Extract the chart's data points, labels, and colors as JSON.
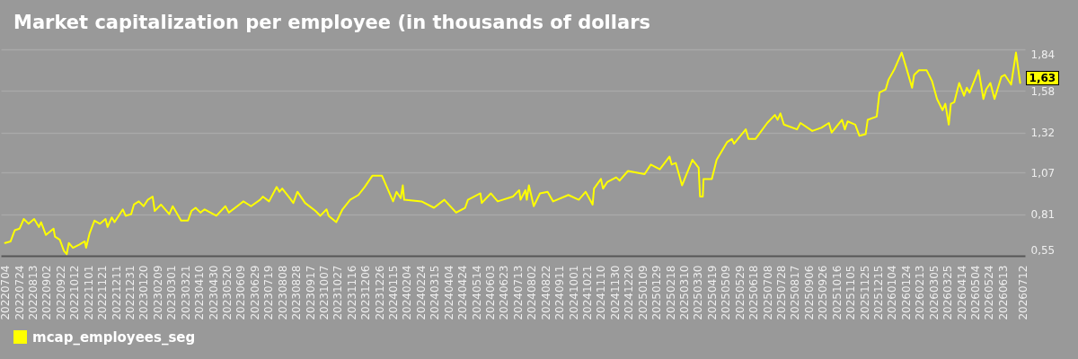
{
  "chart_data": {
    "type": "line",
    "title": "Market capitalization per employee (in thousands of dollars",
    "x": [
      "2022-07-04",
      "2022-07-12",
      "2022-07-18",
      "2022-07-25",
      "2022-07-31",
      "2022-08-07",
      "2022-08-15",
      "2022-08-22",
      "2022-08-25",
      "2022-09-01",
      "2022-09-12",
      "2022-09-14",
      "2022-09-21",
      "2022-09-27",
      "2022-10-01",
      "2022-10-04",
      "2022-10-10",
      "2022-10-19",
      "2022-10-27",
      "2022-10-29",
      "2022-11-03",
      "2022-11-10",
      "2022-11-18",
      "2022-11-26",
      "2022-11-29",
      "2022-12-05",
      "2022-12-09",
      "2022-12-15",
      "2022-12-21",
      "2022-12-25",
      "2023-01-02",
      "2023-01-06",
      "2023-01-13",
      "2023-01-20",
      "2023-01-26",
      "2023-02-02",
      "2023-02-05",
      "2023-02-14",
      "2023-02-26",
      "2023-03-03",
      "2023-03-15",
      "2023-03-25",
      "2023-03-30",
      "2023-04-05",
      "2023-04-12",
      "2023-04-18",
      "2023-05-05",
      "2023-05-18",
      "2023-05-23",
      "2023-06-07",
      "2023-06-13",
      "2023-06-24",
      "2023-07-07",
      "2023-07-11",
      "2023-07-20",
      "2023-07-31",
      "2023-08-04",
      "2023-08-08",
      "2023-08-19",
      "2023-08-24",
      "2023-08-30",
      "2023-09-10",
      "2023-09-25",
      "2023-10-02",
      "2023-10-11",
      "2023-10-14",
      "2023-10-25",
      "2023-11-03",
      "2023-11-14",
      "2023-11-26",
      "2023-12-05",
      "2023-12-16",
      "2023-12-30",
      "2024-01-07",
      "2024-01-15",
      "2024-01-20",
      "2024-01-26",
      "2024-01-29",
      "2024-01-31",
      "2024-02-25",
      "2024-03-14",
      "2024-03-29",
      "2024-04-15",
      "2024-04-28",
      "2024-05-02",
      "2024-05-20",
      "2024-05-22",
      "2024-06-04",
      "2024-06-14",
      "2024-07-06",
      "2024-07-15",
      "2024-07-17",
      "2024-07-24",
      "2024-07-26",
      "2024-07-29",
      "2024-08-05",
      "2024-08-14",
      "2024-08-25",
      "2024-09-02",
      "2024-09-24",
      "2024-10-09",
      "2024-10-19",
      "2024-10-29",
      "2024-10-31",
      "2024-11-10",
      "2024-11-13",
      "2024-11-19",
      "2024-12-02",
      "2024-12-07",
      "2024-12-19",
      "2024-12-31",
      "2025-01-12",
      "2025-01-21",
      "2025-02-03",
      "2025-02-17",
      "2025-02-20",
      "2025-02-26",
      "2025-03-07",
      "2025-03-22",
      "2025-03-31",
      "2025-04-02",
      "2025-04-06",
      "2025-04-07",
      "2025-04-19",
      "2025-04-26",
      "2025-05-11",
      "2025-05-18",
      "2025-05-21",
      "2025-06-07",
      "2025-06-11",
      "2025-06-21",
      "2025-07-08",
      "2025-07-19",
      "2025-07-23",
      "2025-07-27",
      "2025-08-01",
      "2025-08-20",
      "2025-08-25",
      "2025-09-11",
      "2025-09-24",
      "2025-10-05",
      "2025-10-09",
      "2025-10-24",
      "2025-10-28",
      "2025-11-01",
      "2025-11-12",
      "2025-11-18",
      "2025-11-27",
      "2025-11-30",
      "2025-12-13",
      "2025-12-17",
      "2025-12-26",
      "2025-12-30",
      "2026-01-08",
      "2026-01-18",
      "2026-01-25",
      "2026-02-02",
      "2026-02-05",
      "2026-02-12",
      "2026-02-23",
      "2026-03-03",
      "2026-03-10",
      "2026-03-18",
      "2026-03-22",
      "2026-03-27",
      "2026-03-30",
      "2026-04-04",
      "2026-04-11",
      "2026-04-18",
      "2026-04-22",
      "2026-04-26",
      "2026-05-09",
      "2026-05-16",
      "2026-05-20",
      "2026-05-26",
      "2026-06-01",
      "2026-06-11",
      "2026-06-16",
      "2026-06-25",
      "2026-07-02",
      "2026-07-08"
    ],
    "series": [
      {
        "name": "mcap_employees_seg",
        "color": "#ffff00",
        "values": [
          0.63,
          0.64,
          0.71,
          0.72,
          0.78,
          0.75,
          0.78,
          0.73,
          0.76,
          0.68,
          0.72,
          0.67,
          0.65,
          0.58,
          0.56,
          0.63,
          0.6,
          0.62,
          0.64,
          0.6,
          0.69,
          0.77,
          0.75,
          0.78,
          0.73,
          0.79,
          0.76,
          0.8,
          0.84,
          0.8,
          0.81,
          0.87,
          0.89,
          0.86,
          0.9,
          0.92,
          0.83,
          0.87,
          0.81,
          0.86,
          0.77,
          0.77,
          0.83,
          0.85,
          0.82,
          0.84,
          0.8,
          0.86,
          0.82,
          0.87,
          0.89,
          0.86,
          0.9,
          0.92,
          0.89,
          0.98,
          0.95,
          0.97,
          0.91,
          0.88,
          0.95,
          0.88,
          0.83,
          0.8,
          0.84,
          0.8,
          0.76,
          0.84,
          0.9,
          0.93,
          0.98,
          1.05,
          1.05,
          0.97,
          0.89,
          0.95,
          0.91,
          0.99,
          0.9,
          0.89,
          0.85,
          0.9,
          0.82,
          0.85,
          0.9,
          0.94,
          0.88,
          0.94,
          0.89,
          0.92,
          0.96,
          0.9,
          0.96,
          0.9,
          0.99,
          0.86,
          0.94,
          0.95,
          0.89,
          0.93,
          0.9,
          0.95,
          0.87,
          0.97,
          1.03,
          0.97,
          1.01,
          1.04,
          1.02,
          1.08,
          1.07,
          1.06,
          1.12,
          1.09,
          1.17,
          1.12,
          1.13,
          0.99,
          1.15,
          1.1,
          0.92,
          0.92,
          1.03,
          1.03,
          1.15,
          1.26,
          1.28,
          1.25,
          1.34,
          1.28,
          1.28,
          1.38,
          1.43,
          1.4,
          1.44,
          1.37,
          1.34,
          1.38,
          1.33,
          1.35,
          1.38,
          1.32,
          1.4,
          1.34,
          1.39,
          1.37,
          1.3,
          1.31,
          1.4,
          1.42,
          1.57,
          1.59,
          1.65,
          1.72,
          1.82,
          1.72,
          1.6,
          1.68,
          1.71,
          1.71,
          1.64,
          1.53,
          1.46,
          1.5,
          1.37,
          1.5,
          1.51,
          1.63,
          1.55,
          1.6,
          1.57,
          1.71,
          1.53,
          1.59,
          1.63,
          1.53,
          1.67,
          1.68,
          1.62,
          1.82,
          1.63
        ]
      }
    ],
    "xlim": [
      "2022-06-28",
      "2026-07-15"
    ],
    "xticks": [
      {
        "value": "2022-07-04",
        "label": "20220704"
      },
      {
        "value": "2022-07-24",
        "label": "20220724"
      },
      {
        "value": "2022-08-13",
        "label": "20220813"
      },
      {
        "value": "2022-09-02",
        "label": "20220902"
      },
      {
        "value": "2022-09-22",
        "label": "20220922"
      },
      {
        "value": "2022-10-12",
        "label": "20221012"
      },
      {
        "value": "2022-11-01",
        "label": "20221101"
      },
      {
        "value": "2022-11-21",
        "label": "20221121"
      },
      {
        "value": "2022-12-11",
        "label": "20221211"
      },
      {
        "value": "2022-12-31",
        "label": "20221231"
      },
      {
        "value": "2023-01-20",
        "label": "20230120"
      },
      {
        "value": "2023-02-09",
        "label": "20230209"
      },
      {
        "value": "2023-03-01",
        "label": "20230301"
      },
      {
        "value": "2023-03-21",
        "label": "20230321"
      },
      {
        "value": "2023-04-10",
        "label": "20230410"
      },
      {
        "value": "2023-04-30",
        "label": "20230430"
      },
      {
        "value": "2023-05-20",
        "label": "20230520"
      },
      {
        "value": "2023-06-09",
        "label": "20230609"
      },
      {
        "value": "2023-06-29",
        "label": "20230629"
      },
      {
        "value": "2023-07-19",
        "label": "20230719"
      },
      {
        "value": "2023-08-08",
        "label": "20230808"
      },
      {
        "value": "2023-08-28",
        "label": "20230828"
      },
      {
        "value": "2023-09-17",
        "label": "20230917"
      },
      {
        "value": "2023-10-07",
        "label": "20231007"
      },
      {
        "value": "2023-10-27",
        "label": "20231027"
      },
      {
        "value": "2023-11-16",
        "label": "20231116"
      },
      {
        "value": "2023-12-06",
        "label": "20231206"
      },
      {
        "value": "2023-12-26",
        "label": "20231226"
      },
      {
        "value": "2024-01-15",
        "label": "20240115"
      },
      {
        "value": "2024-02-04",
        "label": "20240204"
      },
      {
        "value": "2024-02-24",
        "label": "20240224"
      },
      {
        "value": "2024-03-15",
        "label": "20240315"
      },
      {
        "value": "2024-04-04",
        "label": "20240404"
      },
      {
        "value": "2024-04-24",
        "label": "20240424"
      },
      {
        "value": "2024-05-14",
        "label": "20240514"
      },
      {
        "value": "2024-06-03",
        "label": "20240603"
      },
      {
        "value": "2024-06-23",
        "label": "20240623"
      },
      {
        "value": "2024-07-13",
        "label": "20240713"
      },
      {
        "value": "2024-08-02",
        "label": "20240802"
      },
      {
        "value": "2024-08-22",
        "label": "20240822"
      },
      {
        "value": "2024-09-11",
        "label": "20240911"
      },
      {
        "value": "2024-10-01",
        "label": "20241001"
      },
      {
        "value": "2024-10-21",
        "label": "20241021"
      },
      {
        "value": "2024-11-10",
        "label": "20241110"
      },
      {
        "value": "2024-11-30",
        "label": "20241130"
      },
      {
        "value": "2024-12-20",
        "label": "20241220"
      },
      {
        "value": "2025-01-09",
        "label": "20250109"
      },
      {
        "value": "2025-01-29",
        "label": "20250129"
      },
      {
        "value": "2025-02-18",
        "label": "20250218"
      },
      {
        "value": "2025-03-10",
        "label": "20250310"
      },
      {
        "value": "2025-03-30",
        "label": "20250330"
      },
      {
        "value": "2025-04-19",
        "label": "20250419"
      },
      {
        "value": "2025-05-09",
        "label": "20250509"
      },
      {
        "value": "2025-05-29",
        "label": "20250529"
      },
      {
        "value": "2025-06-18",
        "label": "20250618"
      },
      {
        "value": "2025-07-08",
        "label": "20250708"
      },
      {
        "value": "2025-07-28",
        "label": "20250728"
      },
      {
        "value": "2025-08-17",
        "label": "20250817"
      },
      {
        "value": "2025-09-06",
        "label": "20250906"
      },
      {
        "value": "2025-09-26",
        "label": "20250926"
      },
      {
        "value": "2025-10-16",
        "label": "20251016"
      },
      {
        "value": "2025-11-05",
        "label": "20251105"
      },
      {
        "value": "2025-11-25",
        "label": "20251125"
      },
      {
        "value": "2025-12-15",
        "label": "20251215"
      },
      {
        "value": "2026-01-04",
        "label": "20260104"
      },
      {
        "value": "2026-01-24",
        "label": "20260124"
      },
      {
        "value": "2026-02-13",
        "label": "20260213"
      },
      {
        "value": "2026-03-05",
        "label": "20260305"
      },
      {
        "value": "2026-03-25",
        "label": "20260325"
      },
      {
        "value": "2026-04-14",
        "label": "20260414"
      },
      {
        "value": "2026-05-04",
        "label": "20260504"
      },
      {
        "value": "2026-05-24",
        "label": "20260524"
      },
      {
        "value": "2026-06-13",
        "label": "20260613"
      },
      {
        "value": "2026-07-12",
        "label": "20260712"
      }
    ],
    "ylim": [
      0.55,
      1.84
    ],
    "yticks": [
      {
        "value": 0.55,
        "label": "0,55"
      },
      {
        "value": 0.81,
        "label": "0,81"
      },
      {
        "value": 1.07,
        "label": "1,07"
      },
      {
        "value": 1.32,
        "label": "1,32"
      },
      {
        "value": 1.58,
        "label": "1,58"
      },
      {
        "value": 1.84,
        "label": "1,84"
      }
    ],
    "grid": "y",
    "legend": "bottom left",
    "annotations": [
      {
        "text": "1,63",
        "x": "2026-07-08",
        "y": 1.63
      }
    ]
  }
}
